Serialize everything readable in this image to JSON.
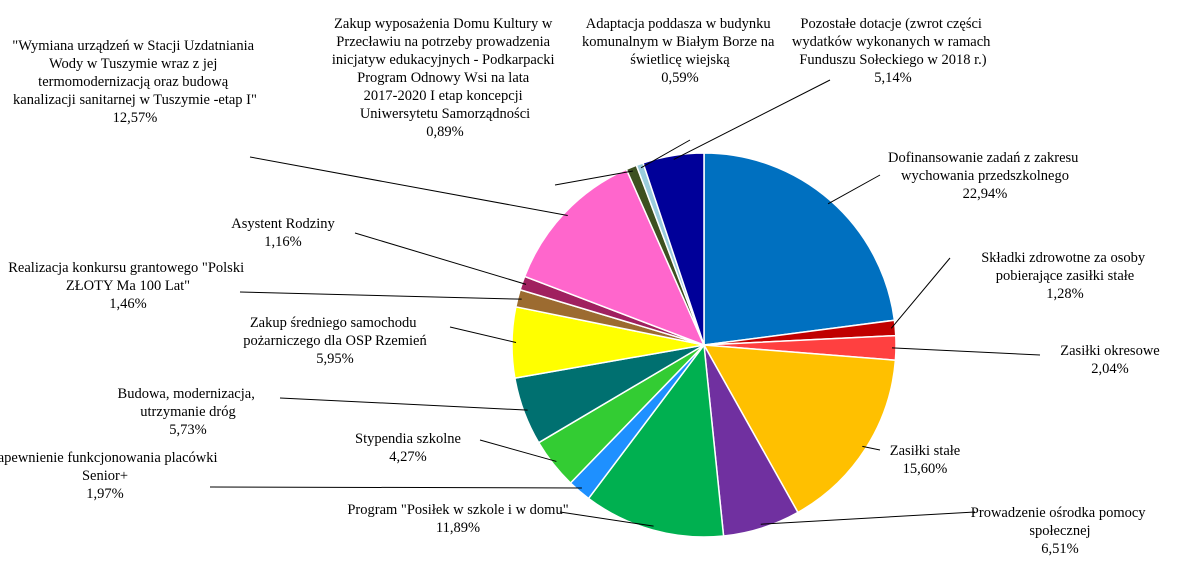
{
  "chart_data": {
    "type": "pie",
    "categories": [
      "Dofinansowanie zadań z zakresu wychowania przedszkolnego",
      "Składki zdrowotne za osoby pobierające zasiłki stałe",
      "Zasiłki okresowe",
      "Zasiłki stałe",
      "Prowadzenie ośrodka pomocy społecznej",
      "Program \"Posiłek w szkole i w domu\"",
      "Zapewnienie funkcjonowania placówki Senior+",
      "Stypendia szkolne",
      "Budowa, modernizacja, utrzymanie dróg",
      "Zakup średniego samochodu pożarniczego dla OSP Rzemień",
      "Realizacja konkursu grantowego \"Polski ZŁOTY Ma 100 Lat\"",
      "Asystent Rodziny",
      "\"Wymiana urządzeń w Stacji Uzdatniania Wody w Tuszymie wraz z jej termomodernizacją oraz budową kanalizacji sanitarnej w Tuszymie -etap I\"",
      "Zakup wyposażenia Domu Kultury w Przecławiu na potrzeby prowadzenia inicjatyw edukacyjnych - Podkarpacki Program Odnowy Wsi na lata 2017-2020 I etap koncepcji Uniwersytetu Samorządności",
      "Adaptacja poddasza w budynku komunalnym w Białym Borze na świetlicę wiejską",
      "Pozostałe dotacje (zwrot części wydatków wykonanych w ramach Funduszu Sołeckiego w 2018 r.)"
    ],
    "values": [
      22.94,
      1.28,
      2.04,
      15.6,
      6.51,
      11.89,
      1.97,
      4.27,
      5.73,
      5.95,
      1.46,
      1.16,
      12.57,
      0.89,
      0.59,
      5.14
    ],
    "value_labels": [
      "22,94%",
      "1,28%",
      "2,04%",
      "15,60%",
      "6,51%",
      "11,89%",
      "1,97%",
      "4,27%",
      "5,73%",
      "5,95%",
      "1,46%",
      "1,16%",
      "12,57%",
      "0,89%",
      "0,59%",
      "5,14%"
    ],
    "colors": [
      "#0070c0",
      "#c00000",
      "#ff4040",
      "#ffc000",
      "#7030a0",
      "#00b050",
      "#1e90ff",
      "#33cc33",
      "#007070",
      "#ffff00",
      "#9c6b30",
      "#a0205f",
      "#ff66cc",
      "#3d5020",
      "#99ccdd",
      "#000099"
    ]
  }
}
